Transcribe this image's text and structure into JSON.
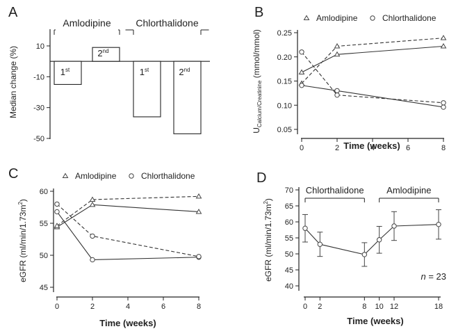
{
  "chart_data": [
    {
      "panel": "A",
      "type": "bar",
      "ylabel": "Median change  (%)",
      "ylim": [
        -50,
        22
      ],
      "yticks": [
        10,
        -10,
        -30,
        -50
      ],
      "groups": [
        {
          "label": "Amlodipine",
          "bars": [
            {
              "label": "1st",
              "base": "1",
              "sup": "st",
              "value": -15
            },
            {
              "label": "2nd",
              "base": "2",
              "sup": "nd",
              "value": 9
            }
          ]
        },
        {
          "label": "Chlorthalidone",
          "bars": [
            {
              "label": "1st",
              "base": "1",
              "sup": "st",
              "value": -36
            },
            {
              "label": "2nd",
              "base": "2",
              "sup": "nd",
              "value": -47
            }
          ]
        }
      ]
    },
    {
      "panel": "B",
      "type": "line",
      "ylabel_main": "U",
      "ylabel_sub": "Calcium/Creatinine",
      "ylabel_units": " (mmol/mmol)",
      "xlabel": "Time  (weeks)",
      "xticks": [
        0,
        2,
        4,
        6,
        8
      ],
      "yticks": [
        0.05,
        0.1,
        0.15,
        0.2,
        0.25
      ],
      "ytick_labels": [
        "0.05",
        "0.10",
        "0.15",
        "0.20",
        "0.25"
      ],
      "xlim": [
        0,
        8
      ],
      "ylim": [
        0.05,
        0.25
      ],
      "legend": [
        "Amlodipine",
        "Chlorthalidone"
      ],
      "series": [
        {
          "name": "Amlodipine",
          "marker": "triangle",
          "style": "solid",
          "x": [
            0,
            2,
            8
          ],
          "y": [
            0.168,
            0.205,
            0.222
          ]
        },
        {
          "name": "Amlodipine",
          "marker": "triangle",
          "style": "dashed",
          "x": [
            0,
            2,
            8
          ],
          "y": [
            0.145,
            0.222,
            0.239
          ]
        },
        {
          "name": "Chlorthalidone",
          "marker": "circle",
          "style": "solid",
          "x": [
            0,
            2,
            8
          ],
          "y": [
            0.141,
            0.13,
            0.096
          ]
        },
        {
          "name": "Chlorthalidone",
          "marker": "circle",
          "style": "dashed",
          "x": [
            0,
            2,
            8
          ],
          "y": [
            0.21,
            0.121,
            0.105
          ]
        }
      ]
    },
    {
      "panel": "C",
      "type": "line",
      "ylabel_main": "eGFR (ml/min/1.73m",
      "ylabel_sup": "2",
      "ylabel_end": ")",
      "xlabel": "Time  (weeks)",
      "xticks": [
        0,
        2,
        4,
        6,
        8
      ],
      "yticks": [
        45,
        50,
        55,
        60
      ],
      "ytick_labels": [
        "45",
        "50",
        "55",
        "60"
      ],
      "xlim": [
        0,
        8
      ],
      "ylim": [
        45,
        60
      ],
      "legend": [
        "Amlodipine",
        "Chlorthalidone"
      ],
      "series": [
        {
          "name": "Amlodipine",
          "marker": "triangle",
          "style": "solid",
          "x": [
            0,
            2,
            8
          ],
          "y": [
            54.4,
            57.9,
            56.8
          ]
        },
        {
          "name": "Amlodipine",
          "marker": "triangle",
          "style": "dashed",
          "x": [
            0,
            2,
            8
          ],
          "y": [
            54.6,
            58.7,
            59.2
          ]
        },
        {
          "name": "Chlorthalidone",
          "marker": "circle",
          "style": "solid",
          "x": [
            0,
            2,
            8
          ],
          "y": [
            56.8,
            49.3,
            49.7
          ]
        },
        {
          "name": "Chlorthalidone",
          "marker": "circle",
          "style": "dashed",
          "x": [
            0,
            2,
            8
          ],
          "y": [
            58.0,
            53.0,
            49.8
          ]
        }
      ]
    },
    {
      "panel": "D",
      "type": "line",
      "ylabel_main": "eGFR (ml/min/1.73m",
      "ylabel_sup": "2",
      "ylabel_end": ")",
      "xlabel": "Time  (weeks)",
      "xticks": [
        0,
        2,
        8,
        10,
        12,
        18
      ],
      "yticks": [
        40,
        45,
        50,
        55,
        60,
        65,
        70
      ],
      "ytick_labels": [
        "40",
        "45",
        "50",
        "55",
        "60",
        "65",
        "70"
      ],
      "xlim": [
        0,
        18
      ],
      "ylim": [
        40,
        70
      ],
      "periods": [
        {
          "label": "Chlorthalidone",
          "from": 0,
          "to": 8
        },
        {
          "label": "Amlodipine",
          "from": 10,
          "to": 18
        }
      ],
      "annotation_n": "n",
      "annotation_rest": " = 23",
      "series": [
        {
          "name": "eGFR",
          "marker": "circle",
          "style": "solid",
          "x": [
            0,
            2,
            8,
            10,
            12,
            18
          ],
          "y": [
            58.0,
            53.0,
            49.8,
            54.4,
            58.7,
            59.2
          ],
          "err": [
            4.3,
            3.8,
            3.7,
            4.2,
            4.5,
            4.6
          ]
        }
      ]
    }
  ]
}
